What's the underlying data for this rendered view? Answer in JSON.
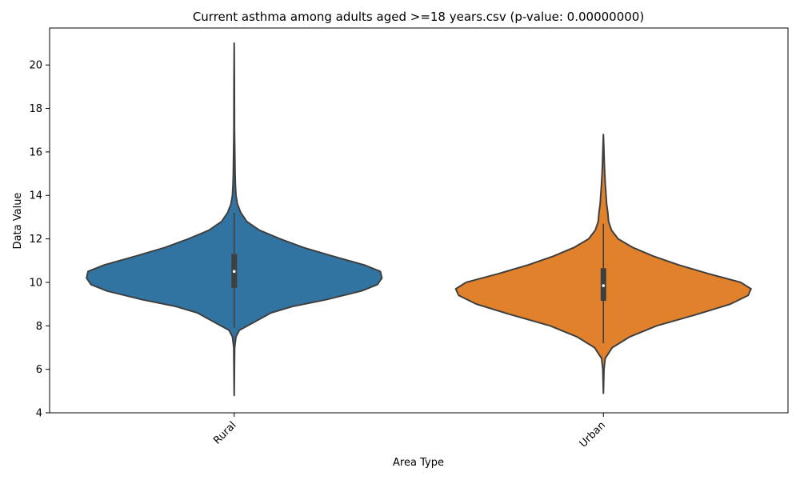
{
  "chart_data": {
    "type": "violin",
    "title": "Current asthma among adults aged >=18 years.csv (p-value: 0.00000000)",
    "xlabel": "Area Type",
    "ylabel": "Data Value",
    "ylim": [
      4,
      21.7
    ],
    "yticks": [
      4,
      6,
      8,
      10,
      12,
      14,
      16,
      18,
      20
    ],
    "grid": false,
    "legend": "none",
    "categories": [
      "Rural",
      "Urban"
    ],
    "series": [
      {
        "category": "Rural",
        "color": "#3274a1",
        "min": 4.8,
        "max": 21.0,
        "q1": 9.75,
        "median": 10.5,
        "q3": 11.3,
        "whisker_low": 7.9,
        "whisker_high": 13.2,
        "density": [
          [
            4.8,
            0.0
          ],
          [
            7.0,
            0.003
          ],
          [
            7.5,
            0.012
          ],
          [
            7.8,
            0.035
          ],
          [
            8.0,
            0.09
          ],
          [
            8.3,
            0.17
          ],
          [
            8.6,
            0.25
          ],
          [
            8.9,
            0.4
          ],
          [
            9.2,
            0.62
          ],
          [
            9.6,
            0.86
          ],
          [
            9.9,
            0.97
          ],
          [
            10.2,
            1.0
          ],
          [
            10.5,
            0.99
          ],
          [
            10.8,
            0.88
          ],
          [
            11.2,
            0.67
          ],
          [
            11.6,
            0.47
          ],
          [
            12.0,
            0.31
          ],
          [
            12.4,
            0.17
          ],
          [
            12.8,
            0.085
          ],
          [
            13.2,
            0.045
          ],
          [
            13.6,
            0.022
          ],
          [
            14.0,
            0.012
          ],
          [
            14.5,
            0.008
          ],
          [
            15.0,
            0.006
          ],
          [
            16.0,
            0.004
          ],
          [
            17.0,
            0.002
          ],
          [
            19.0,
            0.0015
          ],
          [
            21.0,
            0.0
          ]
        ]
      },
      {
        "category": "Urban",
        "color": "#e1812c",
        "min": 4.9,
        "max": 16.8,
        "q1": 9.15,
        "median": 9.85,
        "q3": 10.65,
        "whisker_low": 7.2,
        "whisker_high": 12.7,
        "density": [
          [
            4.9,
            0.0
          ],
          [
            6.0,
            0.004
          ],
          [
            6.5,
            0.012
          ],
          [
            7.0,
            0.06
          ],
          [
            7.5,
            0.18
          ],
          [
            8.0,
            0.36
          ],
          [
            8.5,
            0.62
          ],
          [
            9.0,
            0.86
          ],
          [
            9.4,
            0.98
          ],
          [
            9.7,
            1.0
          ],
          [
            10.0,
            0.93
          ],
          [
            10.4,
            0.71
          ],
          [
            10.8,
            0.51
          ],
          [
            11.2,
            0.34
          ],
          [
            11.6,
            0.2
          ],
          [
            12.0,
            0.1
          ],
          [
            12.4,
            0.055
          ],
          [
            12.8,
            0.035
          ],
          [
            13.2,
            0.03
          ],
          [
            13.6,
            0.022
          ],
          [
            14.0,
            0.018
          ],
          [
            14.5,
            0.013
          ],
          [
            15.0,
            0.009
          ],
          [
            15.5,
            0.006
          ],
          [
            16.0,
            0.004
          ],
          [
            16.8,
            0.0
          ]
        ]
      }
    ]
  }
}
